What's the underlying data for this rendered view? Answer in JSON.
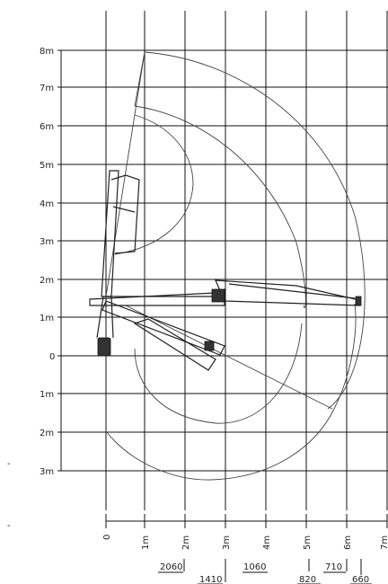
{
  "chart_data": {
    "type": "diagram",
    "y_tick_labels": [
      "8m",
      "7m",
      "6m",
      "5m",
      "4m",
      "3m",
      "2m",
      "1m",
      "0",
      "1m",
      "2m",
      "3m"
    ],
    "x_tick_labels": [
      "0",
      "1m",
      "2m",
      "3m",
      "4m",
      "5m",
      "6m",
      "7m"
    ],
    "capacity_labels": [
      {
        "text": "2060"
      },
      {
        "text": "1410"
      },
      {
        "text": "1060"
      },
      {
        "text": "820"
      },
      {
        "text": "710"
      },
      {
        "text": "660"
      }
    ],
    "stray_marks": [
      "-",
      "-"
    ]
  }
}
